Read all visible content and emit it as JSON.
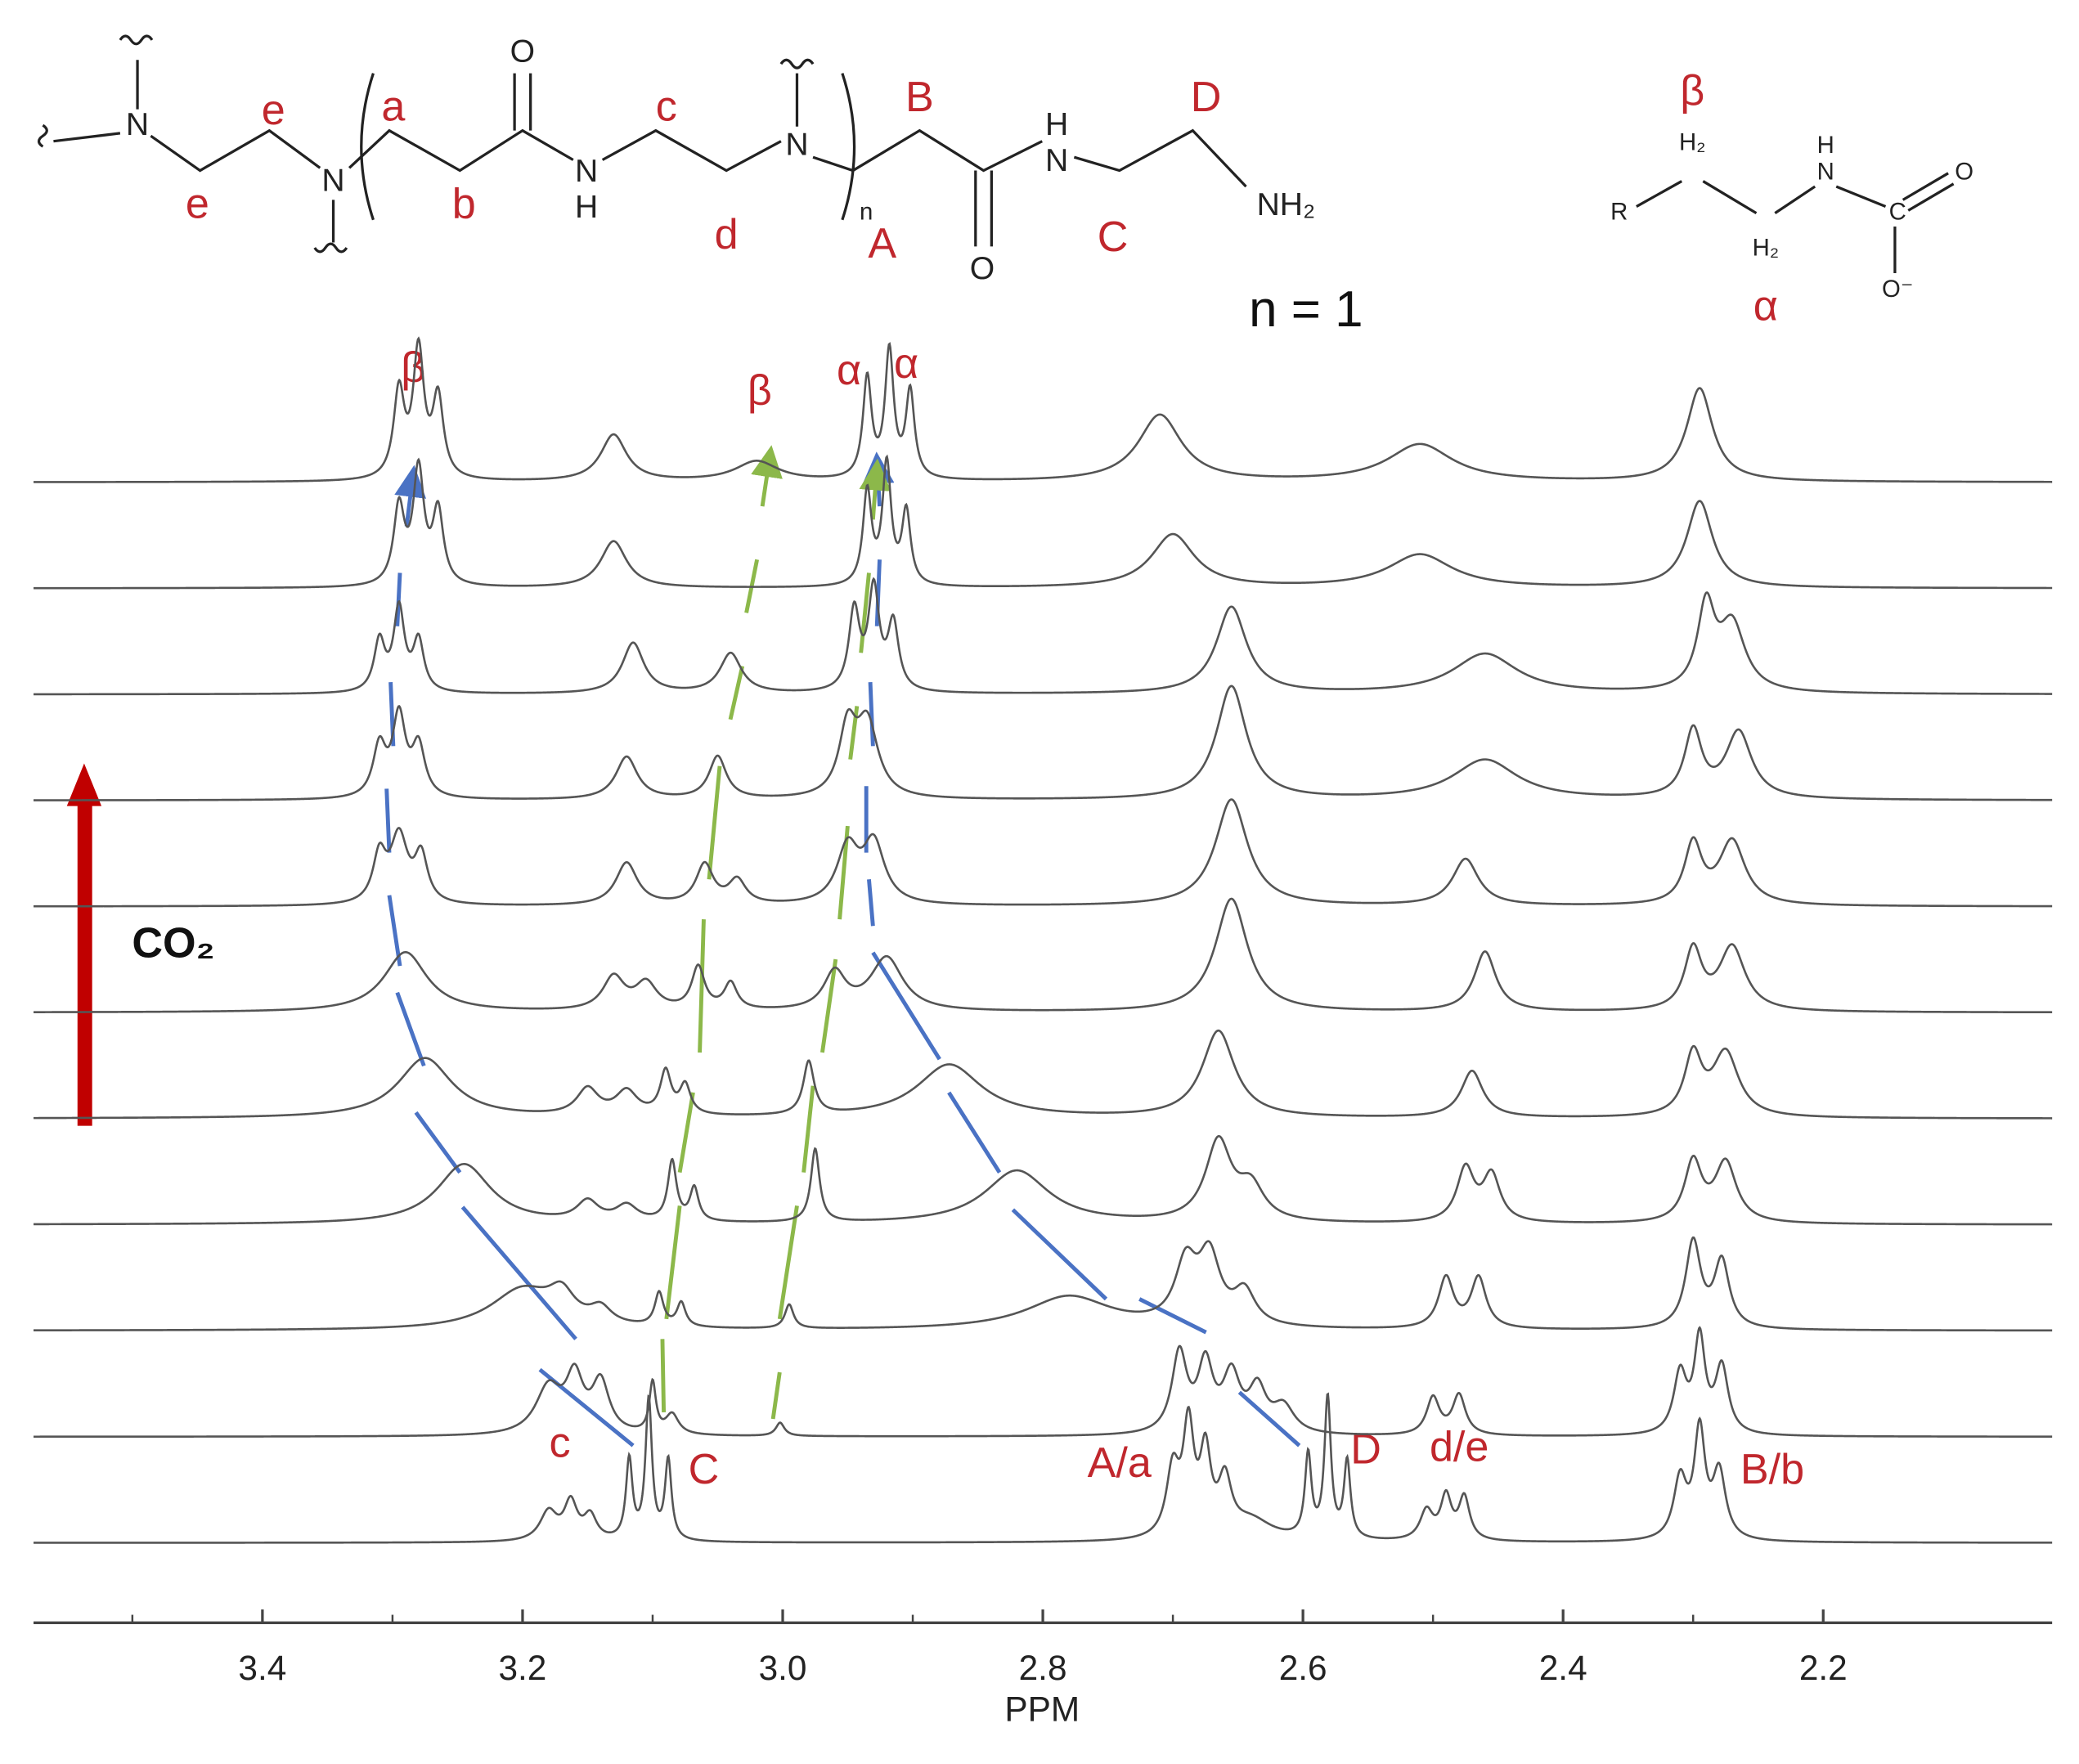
{
  "chart_data": {
    "type": "nmr-stack",
    "x_label": "PPM",
    "xlim": [
      3.576,
      2.024
    ],
    "xticks": [
      3.4,
      3.2,
      {
        "value": 3,
        "label": "3.0"
      },
      2.8,
      2.6,
      2.4,
      2.2
    ],
    "minor_xticks": [
      3.5,
      3.3,
      3.1,
      2.9,
      2.7,
      2.5,
      2.3
    ],
    "line_color": "#555555",
    "spectra": [
      {
        "peaks": [
          [
            3.18,
            22,
            0.008
          ],
          [
            3.163,
            28,
            0.006
          ],
          [
            3.148,
            18,
            0.006
          ],
          [
            3.118,
            60,
            0.003
          ],
          [
            3.103,
            105,
            0.003
          ],
          [
            3.088,
            60,
            0.003
          ],
          [
            2.7,
            50,
            0.006
          ],
          [
            2.688,
            80,
            0.005
          ],
          [
            2.675,
            60,
            0.005
          ],
          [
            2.66,
            40,
            0.006
          ],
          [
            2.64,
            15,
            0.02
          ],
          [
            2.596,
            62,
            0.003
          ],
          [
            2.581,
            105,
            0.003
          ],
          [
            2.566,
            58,
            0.003
          ],
          [
            2.505,
            22,
            0.006
          ],
          [
            2.49,
            32,
            0.005
          ],
          [
            2.476,
            32,
            0.005
          ],
          [
            2.31,
            45,
            0.006
          ],
          [
            2.295,
            80,
            0.005
          ],
          [
            2.28,
            50,
            0.006
          ]
        ]
      },
      {
        "peaks": [
          [
            3.18,
            35,
            0.012
          ],
          [
            3.16,
            40,
            0.008
          ],
          [
            3.14,
            38,
            0.008
          ],
          [
            3.1,
            38,
            0.003
          ],
          [
            3.085,
            15,
            0.006
          ],
          [
            3.002,
            10,
            0.004
          ],
          [
            2.695,
            60,
            0.007
          ],
          [
            2.675,
            50,
            0.007
          ],
          [
            2.655,
            42,
            0.008
          ],
          [
            2.635,
            32,
            0.008
          ],
          [
            2.615,
            20,
            0.01
          ],
          [
            2.5,
            28,
            0.006
          ],
          [
            2.48,
            30,
            0.006
          ],
          [
            2.31,
            45,
            0.006
          ],
          [
            2.295,
            70,
            0.005
          ],
          [
            2.278,
            50,
            0.006
          ]
        ]
      },
      {
        "peaks": [
          [
            3.2,
            30,
            0.03
          ],
          [
            3.17,
            20,
            0.012
          ],
          [
            3.14,
            12,
            0.01
          ],
          [
            3.095,
            25,
            0.004
          ],
          [
            3.078,
            18,
            0.004
          ],
          [
            2.995,
            18,
            0.004
          ],
          [
            2.78,
            25,
            0.04
          ],
          [
            2.69,
            45,
            0.01
          ],
          [
            2.672,
            50,
            0.01
          ],
          [
            2.645,
            25,
            0.01
          ],
          [
            2.49,
            38,
            0.007
          ],
          [
            2.465,
            38,
            0.007
          ],
          [
            2.3,
            65,
            0.007
          ],
          [
            2.278,
            50,
            0.007
          ]
        ]
      },
      {
        "peaks": [
          [
            3.245,
            45,
            0.025
          ],
          [
            3.15,
            15,
            0.01
          ],
          [
            3.12,
            12,
            0.01
          ],
          [
            3.085,
            45,
            0.004
          ],
          [
            3.068,
            25,
            0.004
          ],
          [
            2.975,
            55,
            0.004
          ],
          [
            2.82,
            40,
            0.03
          ],
          [
            2.665,
            60,
            0.012
          ],
          [
            2.64,
            25,
            0.012
          ],
          [
            2.475,
            40,
            0.008
          ],
          [
            2.455,
            35,
            0.008
          ],
          [
            2.3,
            45,
            0.008
          ],
          [
            2.275,
            45,
            0.01
          ]
        ]
      },
      {
        "peaks": [
          [
            3.275,
            45,
            0.025
          ],
          [
            3.15,
            20,
            0.01
          ],
          [
            3.12,
            18,
            0.01
          ],
          [
            3.09,
            32,
            0.005
          ],
          [
            3.075,
            22,
            0.005
          ],
          [
            2.98,
            40,
            0.005
          ],
          [
            2.872,
            40,
            0.03
          ],
          [
            2.665,
            65,
            0.015
          ],
          [
            2.47,
            35,
            0.01
          ],
          [
            2.3,
            45,
            0.008
          ],
          [
            2.275,
            48,
            0.012
          ]
        ]
      },
      {
        "peaks": [
          [
            3.29,
            45,
            0.02
          ],
          [
            3.13,
            25,
            0.01
          ],
          [
            3.105,
            20,
            0.01
          ],
          [
            3.065,
            32,
            0.006
          ],
          [
            3.04,
            20,
            0.006
          ],
          [
            2.96,
            28,
            0.01
          ],
          [
            2.92,
            40,
            0.015
          ],
          [
            2.655,
            85,
            0.015
          ],
          [
            2.46,
            45,
            0.01
          ],
          [
            2.3,
            45,
            0.008
          ],
          [
            2.27,
            48,
            0.012
          ]
        ]
      },
      {
        "peaks": [
          [
            3.31,
            35,
            0.006
          ],
          [
            3.295,
            50,
            0.008
          ],
          [
            3.278,
            35,
            0.006
          ],
          [
            3.12,
            32,
            0.01
          ],
          [
            3.06,
            30,
            0.008
          ],
          [
            3.035,
            18,
            0.008
          ],
          [
            2.95,
            42,
            0.01
          ],
          [
            2.93,
            45,
            0.01
          ],
          [
            2.655,
            80,
            0.015
          ],
          [
            2.475,
            35,
            0.012
          ],
          [
            2.3,
            45,
            0.008
          ],
          [
            2.27,
            48,
            0.012
          ]
        ]
      },
      {
        "peaks": [
          [
            3.31,
            38,
            0.006
          ],
          [
            3.295,
            60,
            0.006
          ],
          [
            3.28,
            38,
            0.006
          ],
          [
            3.12,
            32,
            0.01
          ],
          [
            3.05,
            32,
            0.008
          ],
          [
            2.95,
            50,
            0.008
          ],
          [
            2.935,
            55,
            0.01
          ],
          [
            2.655,
            85,
            0.014
          ],
          [
            2.46,
            30,
            0.03
          ],
          [
            2.3,
            50,
            0.008
          ],
          [
            2.265,
            50,
            0.012
          ]
        ]
      },
      {
        "peaks": [
          [
            3.31,
            38,
            0.005
          ],
          [
            3.295,
            62,
            0.005
          ],
          [
            3.28,
            38,
            0.005
          ],
          [
            3.115,
            38,
            0.01
          ],
          [
            3.04,
            30,
            0.01
          ],
          [
            2.945,
            60,
            0.005
          ],
          [
            2.93,
            75,
            0.005
          ],
          [
            2.915,
            50,
            0.005
          ],
          [
            2.655,
            65,
            0.014
          ],
          [
            2.46,
            30,
            0.03
          ],
          [
            2.29,
            62,
            0.008
          ],
          [
            2.27,
            50,
            0.012
          ]
        ]
      },
      {
        "peaks": [
          [
            3.295,
            58,
            0.005
          ],
          [
            3.28,
            85,
            0.005
          ],
          [
            3.265,
            55,
            0.005
          ],
          [
            3.13,
            35,
            0.012
          ],
          [
            2.935,
            70,
            0.004
          ],
          [
            2.92,
            90,
            0.004
          ],
          [
            2.905,
            55,
            0.004
          ],
          [
            2.7,
            40,
            0.02
          ],
          [
            2.51,
            25,
            0.03
          ],
          [
            2.295,
            65,
            0.012
          ]
        ]
      },
      {
        "peaks": [
          [
            3.295,
            65,
            0.005
          ],
          [
            3.28,
            95,
            0.005
          ],
          [
            3.265,
            60,
            0.005
          ],
          [
            3.13,
            35,
            0.012
          ],
          [
            3.02,
            15,
            0.02
          ],
          [
            2.935,
            75,
            0.004
          ],
          [
            2.918,
            95,
            0.004
          ],
          [
            2.902,
            65,
            0.004
          ],
          [
            2.71,
            50,
            0.02
          ],
          [
            2.51,
            28,
            0.03
          ],
          [
            2.295,
            70,
            0.012
          ]
        ]
      }
    ],
    "peak_labels": [
      "c",
      "C",
      "A/a",
      "D",
      "d/e",
      "B/b",
      "β",
      "β",
      "α",
      "α"
    ],
    "arrow_label": "CO₂"
  },
  "structures": {
    "left": {
      "atoms": [
        "N",
        "N",
        "O",
        "N",
        "H",
        "N",
        "H",
        "N",
        "O",
        "NH₂",
        "n"
      ],
      "labels": [
        "e",
        "e",
        "a",
        "b",
        "c",
        "d",
        "B",
        "A",
        "D",
        "C"
      ],
      "caption": "n = 1"
    },
    "right": {
      "atoms": [
        "R",
        "H₂",
        "H₂",
        "H",
        "N",
        "C",
        "O",
        "O⁻"
      ],
      "labels": [
        "β",
        "α"
      ]
    }
  }
}
